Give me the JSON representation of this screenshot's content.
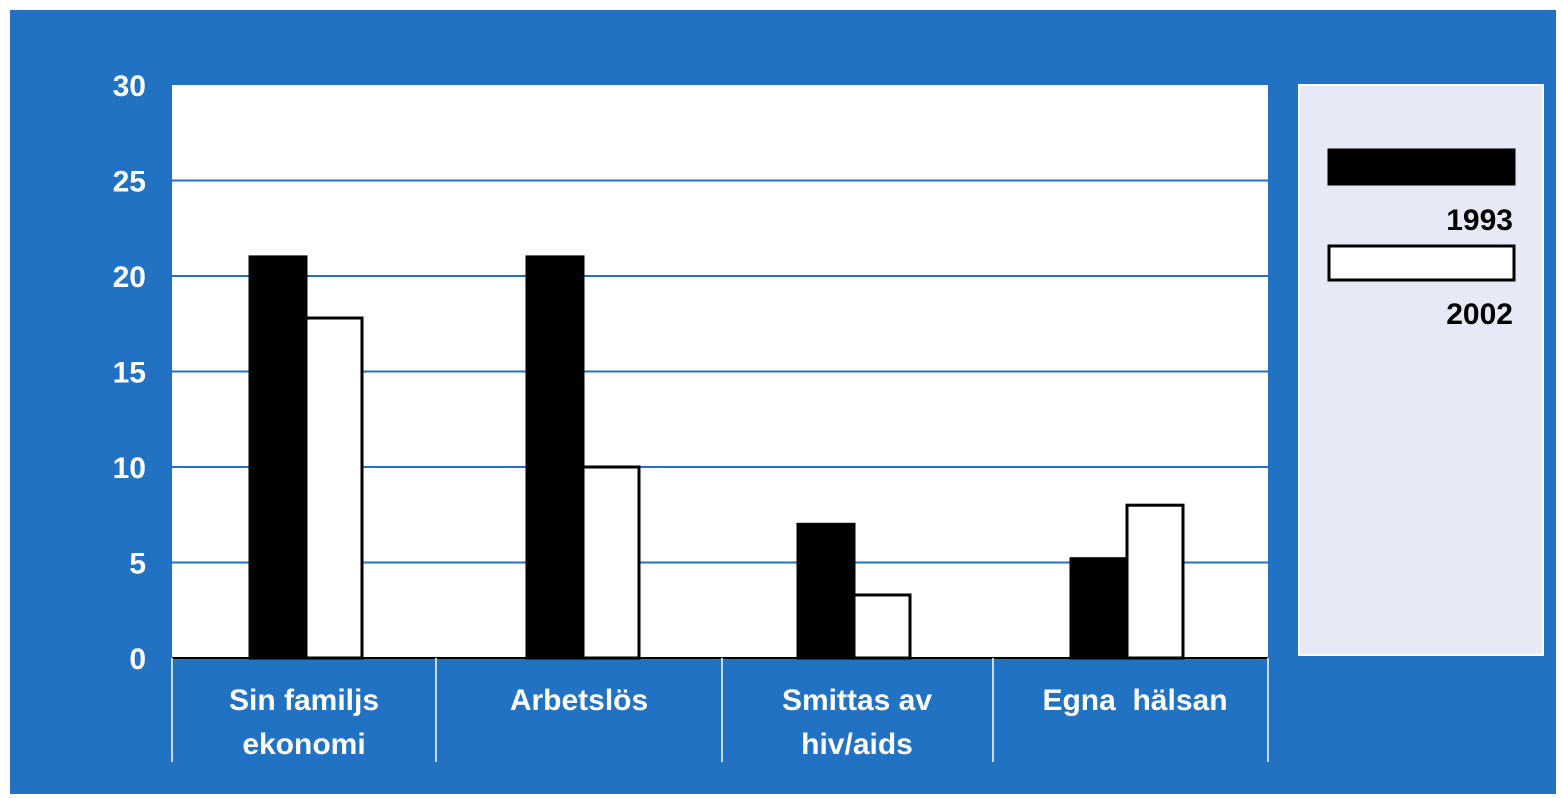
{
  "colors": {
    "background": "#2272c3",
    "plot_area": "#ffffff",
    "legend_box": "#e8e9f6",
    "gridline": "#2272c3",
    "series_1993": "#000000",
    "series_2002": "#ffffff"
  },
  "chart_data": {
    "type": "bar",
    "title": "",
    "xlabel": "",
    "ylabel": "",
    "ylim": [
      0,
      30
    ],
    "yticks": [
      "0",
      "5",
      "10",
      "15",
      "20",
      "25",
      "30"
    ],
    "grid": true,
    "legend_position": "right",
    "categories": [
      [
        "Sin familjs",
        "ekonomi"
      ],
      [
        "Arbetslös"
      ],
      [
        "Smittas av",
        "hiv/aids"
      ],
      [
        "Egna  hälsan"
      ]
    ],
    "series": [
      {
        "name": "1993",
        "color": "#000000",
        "values": [
          21,
          21,
          7,
          5.2
        ]
      },
      {
        "name": "2002",
        "color": "#ffffff",
        "values": [
          17.8,
          10,
          3.3,
          8
        ]
      }
    ]
  }
}
